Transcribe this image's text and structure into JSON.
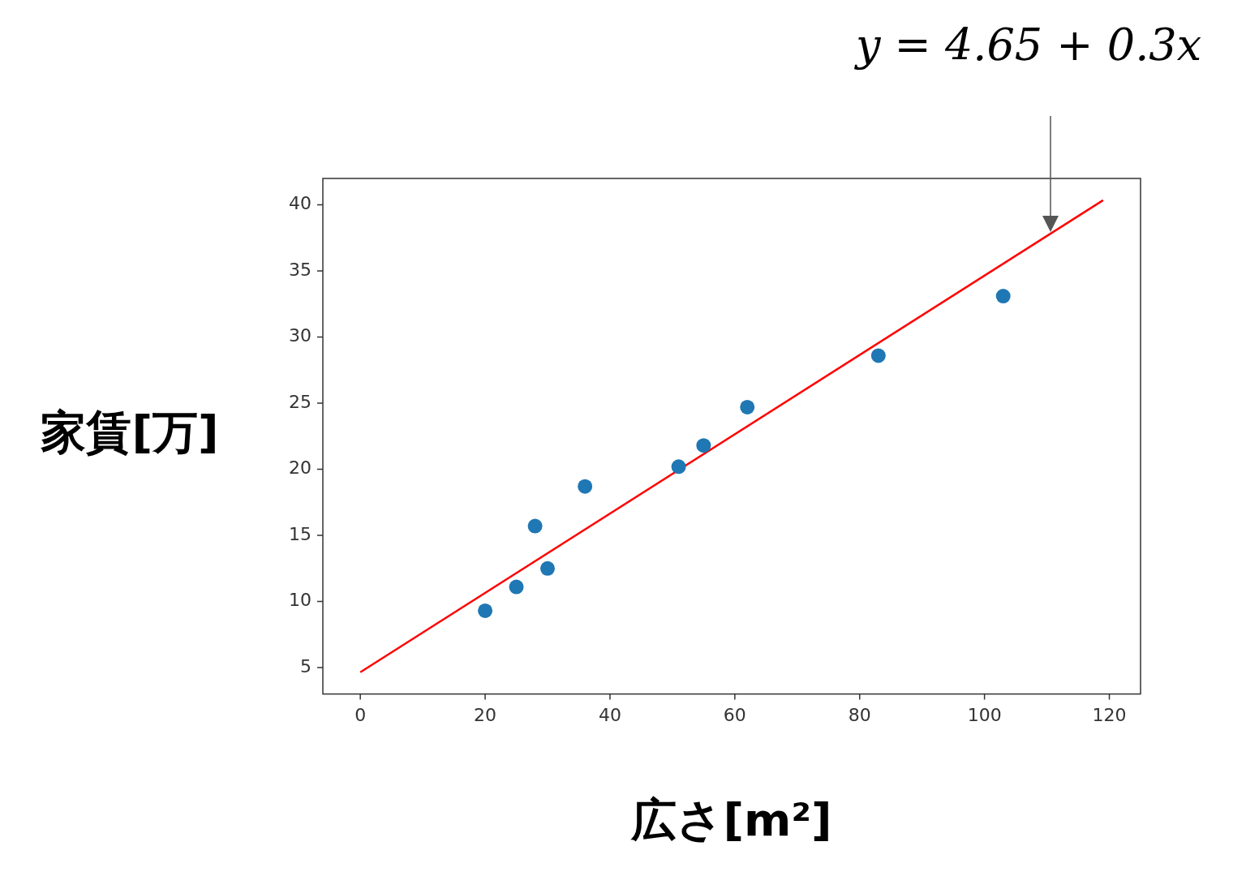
{
  "chart_data": {
    "type": "scatter",
    "xlabel": "広さ[m²]",
    "ylabel": "家賃[万]",
    "annotation": "y = 4.65 + 0.3x",
    "xlim": [
      -6,
      125
    ],
    "xticks": [
      0,
      20,
      40,
      60,
      80,
      100,
      120
    ],
    "ylim": [
      3,
      42
    ],
    "yticks": [
      5,
      10,
      15,
      20,
      25,
      30,
      35,
      40
    ],
    "grid": false,
    "series": [
      {
        "type": "scatter",
        "marker": "circle",
        "color": "#1f77b4",
        "x": [
          20,
          25,
          28,
          30,
          36,
          51,
          55,
          62,
          83,
          103
        ],
        "values": [
          9.3,
          11.1,
          15.7,
          12.5,
          18.7,
          20.2,
          21.8,
          24.7,
          28.6,
          33.1
        ]
      },
      {
        "type": "line",
        "line_style": "solid",
        "color": "#ff0000",
        "x": [
          0,
          119
        ],
        "values": [
          4.65,
          40.35
        ]
      }
    ]
  }
}
